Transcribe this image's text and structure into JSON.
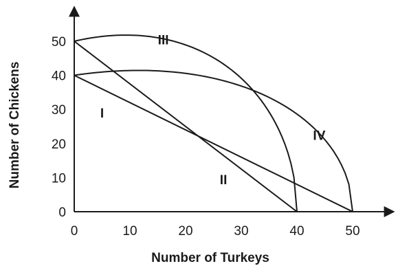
{
  "chart_data": {
    "type": "line",
    "xlabel": "Number of Turkeys",
    "ylabel": "Number of Chickens",
    "xlim": [
      0,
      50
    ],
    "ylim": [
      0,
      50
    ],
    "x_ticks": [
      "0",
      "10",
      "20",
      "30",
      "40",
      "50"
    ],
    "y_ticks": [
      "0",
      "10",
      "20",
      "30",
      "40",
      "50"
    ],
    "grid": false,
    "series": [
      {
        "name": "I",
        "shape": "linear",
        "x": [
          0,
          50
        ],
        "y": [
          40,
          0
        ]
      },
      {
        "name": "II",
        "shape": "linear",
        "x": [
          0,
          40
        ],
        "y": [
          50,
          0
        ]
      },
      {
        "name": "III",
        "shape": "concave",
        "x": [
          0,
          40
        ],
        "y": [
          50,
          0
        ]
      },
      {
        "name": "IV",
        "shape": "concave",
        "x": [
          0,
          50
        ],
        "y": [
          40,
          0
        ]
      }
    ]
  }
}
